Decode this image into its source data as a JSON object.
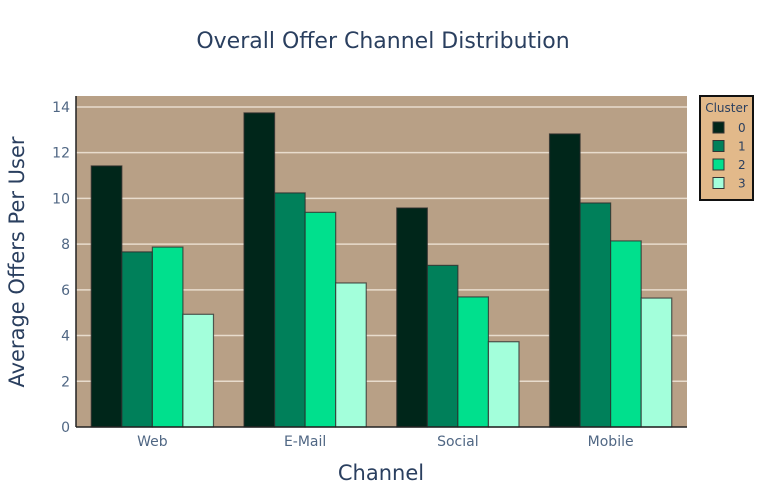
{
  "chart_data": {
    "type": "bar",
    "title": "Overall Offer Channel Distribution",
    "xlabel": "Channel",
    "ylabel": "Average Offers Per User",
    "categories": [
      "Web",
      "E-Mail",
      "Social",
      "Mobile"
    ],
    "series": [
      {
        "name": "0",
        "color": "#00261a",
        "values": [
          11.42,
          13.74,
          9.58,
          12.82
        ]
      },
      {
        "name": "1",
        "color": "#00805a",
        "values": [
          7.66,
          10.24,
          7.07,
          9.8
        ]
      },
      {
        "name": "2",
        "color": "#00e08d",
        "values": [
          7.87,
          9.39,
          5.69,
          8.14
        ]
      },
      {
        "name": "3",
        "color": "#a3ffdb",
        "values": [
          4.93,
          6.3,
          3.73,
          5.64
        ]
      }
    ],
    "ylim": [
      0,
      14.5
    ],
    "yticks": [
      0,
      2,
      4,
      6,
      8,
      10,
      12,
      14
    ],
    "grid": true,
    "legend": {
      "title": "Cluster",
      "position": "right-top"
    },
    "plot_bgcolor": "#b8a086",
    "legend_bgcolor": "#e2b98a",
    "barmode": "group"
  }
}
